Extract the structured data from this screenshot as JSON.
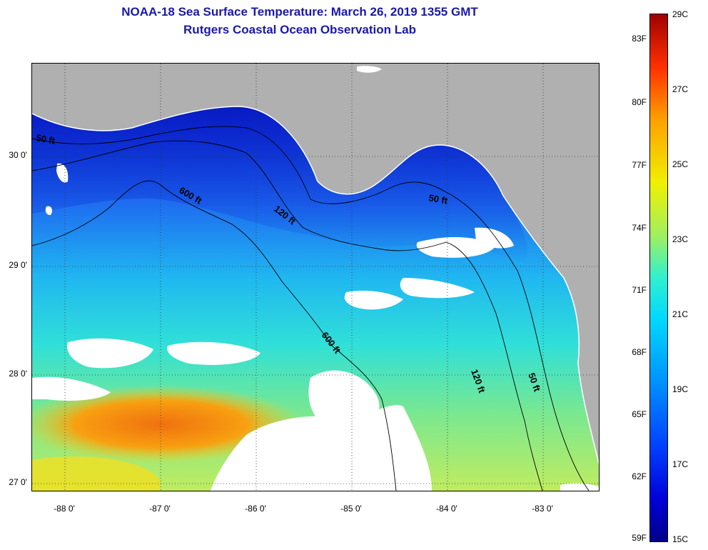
{
  "title_line_1": "NOAA-18 Sea Surface Temperature:  March 26, 2019 1355 GMT",
  "title_line_2": "Rutgers Coastal Ocean Observation Lab",
  "lat_labels": [
    "30 0'",
    "29 0'",
    "28 0'",
    "27 0'"
  ],
  "lon_labels": [
    "-88 0'",
    "-87 0'",
    "-86 0'",
    "-85 0'",
    "-84 0'",
    "-83 0'"
  ],
  "contour_labels": {
    "c50_west": "50 ft",
    "c50_east": "50 ft",
    "c50_south": "50 ft",
    "c120_north": "120 ft",
    "c120_south": "120 ft",
    "c600_north": "600 ft",
    "c600_south": "600 ft"
  },
  "colorbar": {
    "fahrenheit_labels": [
      "83F",
      "80F",
      "77F",
      "74F",
      "71F",
      "68F",
      "65F",
      "62F",
      "59F"
    ],
    "celsius_labels": [
      "29C",
      "27C",
      "25C",
      "23C",
      "21C",
      "19C",
      "17C",
      "15C"
    ]
  },
  "colors": {
    "land": "#b0b0b0",
    "cloud": "#ffffff",
    "title": "#1a1aa6"
  }
}
